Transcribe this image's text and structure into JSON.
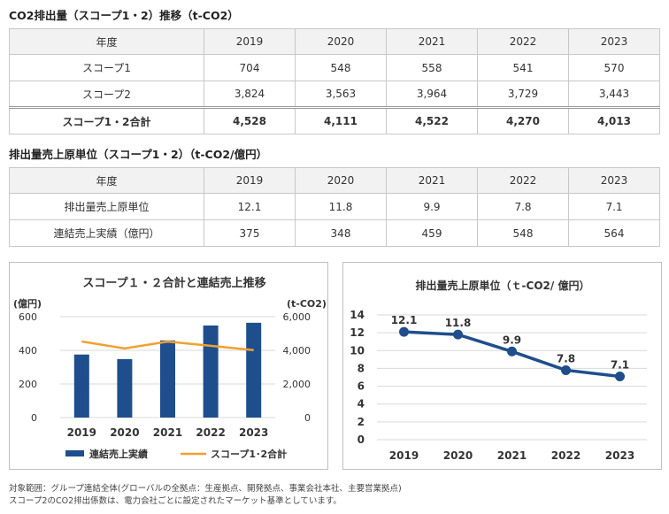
{
  "table1": {
    "title": "CO2排出量（スコープ1・2）推移（t-CO2）",
    "header_label": "年度",
    "years": [
      "2019",
      "2020",
      "2021",
      "2022",
      "2023"
    ],
    "rows": [
      {
        "label": "スコープ1",
        "values": [
          "704",
          "548",
          "558",
          "541",
          "570"
        ]
      },
      {
        "label": "スコープ2",
        "values": [
          "3,824",
          "3,563",
          "3,964",
          "3,729",
          "3,443"
        ]
      }
    ],
    "total": {
      "label": "スコープ1・2合計",
      "values": [
        "4,528",
        "4,111",
        "4,522",
        "4,270",
        "4,013"
      ]
    }
  },
  "table2": {
    "title": "排出量売上原単位（スコープ1・2）（t-CO2/億円）",
    "header_label": "年度",
    "years": [
      "2019",
      "2020",
      "2021",
      "2022",
      "2023"
    ],
    "rows": [
      {
        "label": "排出量売上原単位",
        "values": [
          "12.1",
          "11.8",
          "9.9",
          "7.8",
          "7.1"
        ]
      },
      {
        "label": "連結売上実績（億円）",
        "values": [
          "375",
          "348",
          "459",
          "548",
          "564"
        ]
      }
    ]
  },
  "chart_data": [
    {
      "type": "bar",
      "title": "スコープ１・２合計と連結売上推移",
      "categories": [
        "2019",
        "2020",
        "2021",
        "2022",
        "2023"
      ],
      "ylabel": "(億円)",
      "ylim": [
        0,
        600
      ],
      "yticks": [
        "0",
        "200",
        "400",
        "600"
      ],
      "y2label": "(t-CO2)",
      "y2lim": [
        0,
        6000
      ],
      "y2ticks": [
        "0",
        "2,000",
        "4,000",
        "6,000"
      ],
      "series": [
        {
          "name": "連結売上実績",
          "type": "bar",
          "axis": "left",
          "color": "#1f4e8c",
          "values": [
            375,
            348,
            459,
            548,
            564
          ]
        },
        {
          "name": "スコープ1･2合計",
          "type": "line",
          "axis": "right",
          "color": "#f0a030",
          "values": [
            4528,
            4111,
            4522,
            4270,
            4013
          ]
        }
      ],
      "legend": "bottom",
      "grid": true
    },
    {
      "type": "line",
      "title": "排出量売上原単位（ｔ-CO2/ 億円）",
      "categories": [
        "2019",
        "2020",
        "2021",
        "2022",
        "2023"
      ],
      "ylim": [
        0,
        14
      ],
      "yticks": [
        "0",
        "2",
        "4",
        "6",
        "8",
        "10",
        "12",
        "14"
      ],
      "series": [
        {
          "color": "#1f4e8c",
          "values": [
            12.1,
            11.8,
            9.9,
            7.8,
            7.1
          ],
          "labels": [
            "12.1",
            "11.8",
            "9.9",
            "7.8",
            "7.1"
          ]
        }
      ],
      "grid": true
    }
  ],
  "notes": [
    "対象範囲：グループ連結全体(グローバルの全拠点：生産拠点、開発拠点、事業会社本社、主要営業拠点)",
    "スコープ2のCO2排出係数は、電力会社ごとに設定されたマーケット基準としています。"
  ]
}
